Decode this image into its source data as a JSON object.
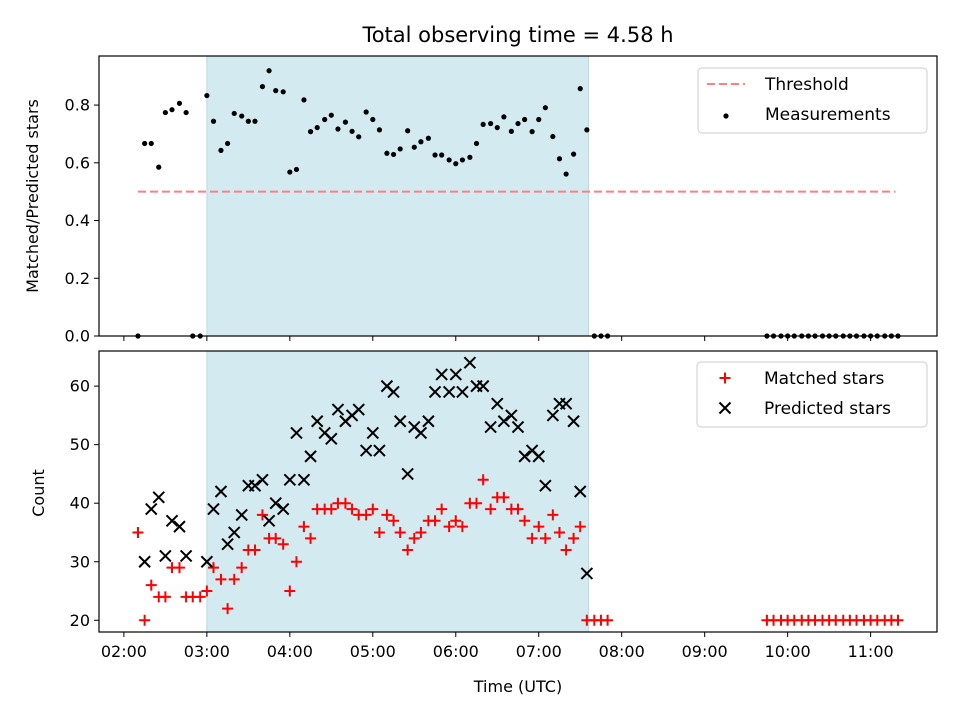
{
  "chart_data": [
    {
      "id": "top",
      "type": "scatter",
      "title": "Total observing time = 4.58 h",
      "xlabel": "",
      "ylabel": "Matched/Predicted stars",
      "ylim": [
        0,
        0.97
      ],
      "yticks": [
        0.0,
        0.2,
        0.4,
        0.6,
        0.8
      ],
      "ytick_labels": [
        "0.0",
        "0.2",
        "0.4",
        "0.6",
        "0.8"
      ],
      "x_unit": "hours UTC",
      "xlim": [
        1.7,
        11.8
      ],
      "shaded_span": [
        3.0,
        7.6
      ],
      "shade_color": "#d3eaf0",
      "legend": "top-right",
      "series": [
        {
          "name": "Threshold",
          "kind": "line",
          "style": "dashed",
          "color": "#ff7f7f",
          "x": [
            2.17,
            11.3
          ],
          "y": [
            0.5,
            0.5
          ]
        },
        {
          "name": "Measurements",
          "kind": "dots",
          "color": "#000000",
          "x": [
            2.17,
            2.25,
            2.33,
            2.42,
            2.5,
            2.58,
            2.67,
            2.75,
            2.83,
            2.92,
            3.0,
            3.08,
            3.17,
            3.25,
            3.33,
            3.42,
            3.5,
            3.58,
            3.67,
            3.75,
            3.83,
            3.92,
            4.0,
            4.08,
            4.17,
            4.25,
            4.33,
            4.42,
            4.5,
            4.58,
            4.67,
            4.75,
            4.83,
            4.92,
            5.0,
            5.08,
            5.17,
            5.25,
            5.33,
            5.42,
            5.5,
            5.58,
            5.67,
            5.75,
            5.83,
            5.92,
            6.0,
            6.08,
            6.17,
            6.25,
            6.33,
            6.42,
            6.5,
            6.58,
            6.67,
            6.75,
            6.83,
            6.92,
            7.0,
            7.08,
            7.17,
            7.25,
            7.33,
            7.42,
            7.5,
            7.58,
            7.67,
            7.75,
            7.83,
            9.75,
            9.83,
            9.92,
            10.0,
            10.08,
            10.17,
            10.25,
            10.33,
            10.42,
            10.5,
            10.58,
            10.67,
            10.75,
            10.83,
            10.92,
            11.0,
            11.08,
            11.17,
            11.25,
            11.33
          ],
          "y": [
            0.0,
            0.667,
            0.667,
            0.585,
            0.774,
            0.784,
            0.806,
            0.774,
            0.0,
            0.0,
            0.833,
            0.744,
            0.643,
            0.667,
            0.771,
            0.762,
            0.744,
            0.744,
            0.864,
            0.919,
            0.85,
            0.846,
            0.568,
            0.577,
            0.818,
            0.708,
            0.722,
            0.75,
            0.765,
            0.717,
            0.741,
            0.709,
            0.69,
            0.776,
            0.75,
            0.714,
            0.633,
            0.629,
            0.648,
            0.711,
            0.654,
            0.673,
            0.685,
            0.627,
            0.627,
            0.61,
            0.597,
            0.61,
            0.619,
            0.667,
            0.733,
            0.736,
            0.722,
            0.759,
            0.709,
            0.736,
            0.75,
            0.708,
            0.75,
            0.791,
            0.691,
            0.614,
            0.561,
            0.63,
            0.857,
            0.714,
            0.0,
            0.0,
            0.0,
            0.0,
            0.0,
            0.0,
            0.0,
            0.0,
            0.0,
            0.0,
            0.0,
            0.0,
            0.0,
            0.0,
            0.0,
            0.0,
            0.0,
            0.0,
            0.0,
            0.0,
            0.0,
            0.0,
            0.0
          ]
        }
      ]
    },
    {
      "id": "bottom",
      "type": "scatter",
      "title": "",
      "xlabel": "Time (UTC)",
      "ylabel": "Count",
      "ylim": [
        18,
        66
      ],
      "yticks": [
        20,
        30,
        40,
        50,
        60
      ],
      "ytick_labels": [
        "20",
        "30",
        "40",
        "50",
        "60"
      ],
      "x_unit": "hours UTC",
      "xlim": [
        1.7,
        11.8
      ],
      "xticks": [
        2,
        3,
        4,
        5,
        6,
        7,
        8,
        9,
        10,
        11
      ],
      "xtick_labels": [
        "02:00",
        "03:00",
        "04:00",
        "05:00",
        "06:00",
        "07:00",
        "08:00",
        "09:00",
        "10:00",
        "11:00"
      ],
      "shaded_span": [
        3.0,
        7.6
      ],
      "shade_color": "#d3eaf0",
      "legend": "top-right",
      "series": [
        {
          "name": "Matched stars",
          "kind": "plus",
          "color": "#ff0000",
          "x": [
            2.17,
            2.25,
            2.33,
            2.42,
            2.5,
            2.58,
            2.67,
            2.75,
            2.83,
            2.92,
            3.0,
            3.08,
            3.17,
            3.25,
            3.33,
            3.42,
            3.5,
            3.58,
            3.67,
            3.75,
            3.83,
            3.92,
            4.0,
            4.08,
            4.17,
            4.25,
            4.33,
            4.42,
            4.5,
            4.58,
            4.67,
            4.75,
            4.83,
            4.92,
            5.0,
            5.08,
            5.17,
            5.25,
            5.33,
            5.42,
            5.5,
            5.58,
            5.67,
            5.75,
            5.83,
            5.92,
            6.0,
            6.08,
            6.17,
            6.25,
            6.33,
            6.42,
            6.5,
            6.58,
            6.67,
            6.75,
            6.83,
            6.92,
            7.0,
            7.08,
            7.17,
            7.25,
            7.33,
            7.42,
            7.5,
            7.58,
            7.67,
            7.75,
            7.83,
            9.75,
            9.83,
            9.92,
            10.0,
            10.08,
            10.17,
            10.25,
            10.33,
            10.42,
            10.5,
            10.58,
            10.67,
            10.75,
            10.83,
            10.92,
            11.0,
            11.08,
            11.17,
            11.25,
            11.33
          ],
          "y": [
            35,
            20,
            26,
            24,
            24,
            29,
            29,
            24,
            24,
            24,
            25,
            29,
            27,
            22,
            27,
            29,
            32,
            32,
            38,
            34,
            34,
            33,
            25,
            30,
            36,
            34,
            39,
            39,
            39,
            40,
            40,
            39,
            38,
            38,
            39,
            35,
            38,
            37,
            35,
            32,
            34,
            35,
            37,
            37,
            39,
            36,
            37,
            36,
            40,
            40,
            44,
            39,
            41,
            41,
            39,
            39,
            37,
            34,
            36,
            34,
            38,
            35,
            32,
            34,
            36,
            20,
            20,
            20,
            20,
            20,
            20,
            20,
            20,
            20,
            20,
            20,
            20,
            20,
            20,
            20,
            20,
            20,
            20,
            20,
            20,
            20,
            20,
            20,
            20
          ]
        },
        {
          "name": "Predicted stars",
          "kind": "cross",
          "color": "#000000",
          "x": [
            2.25,
            2.33,
            2.42,
            2.5,
            2.58,
            2.67,
            2.75,
            3.0,
            3.08,
            3.17,
            3.25,
            3.33,
            3.42,
            3.5,
            3.58,
            3.67,
            3.75,
            3.83,
            3.92,
            4.0,
            4.08,
            4.17,
            4.25,
            4.33,
            4.42,
            4.5,
            4.58,
            4.67,
            4.75,
            4.83,
            4.92,
            5.0,
            5.08,
            5.17,
            5.25,
            5.33,
            5.42,
            5.5,
            5.58,
            5.67,
            5.75,
            5.83,
            5.92,
            6.0,
            6.08,
            6.17,
            6.25,
            6.33,
            6.42,
            6.5,
            6.58,
            6.67,
            6.75,
            6.83,
            6.92,
            7.0,
            7.08,
            7.17,
            7.25,
            7.33,
            7.42,
            7.5,
            7.58
          ],
          "y": [
            30,
            39,
            41,
            31,
            37,
            36,
            31,
            30,
            39,
            42,
            33,
            35,
            38,
            43,
            43,
            44,
            37,
            40,
            39,
            44,
            52,
            44,
            48,
            54,
            52,
            51,
            56,
            54,
            55,
            56,
            49,
            52,
            49,
            60,
            59,
            54,
            45,
            53,
            52,
            54,
            59,
            62,
            59,
            62,
            59,
            64,
            60,
            60,
            53,
            57,
            54,
            55,
            53,
            48,
            49,
            48,
            43,
            55,
            57,
            57,
            54,
            42,
            28
          ]
        }
      ]
    }
  ]
}
